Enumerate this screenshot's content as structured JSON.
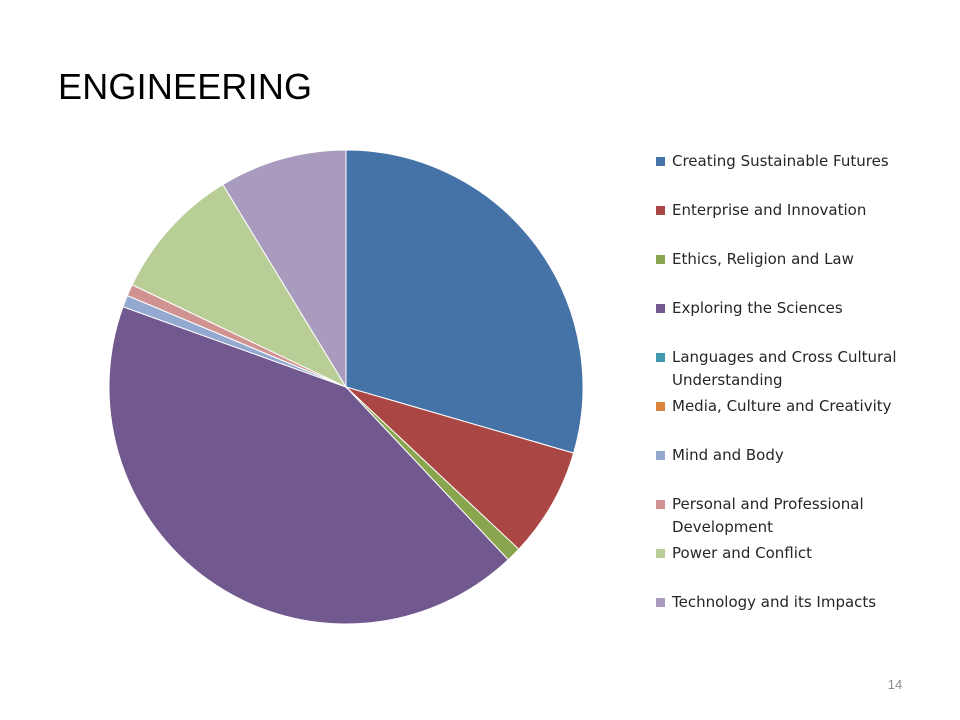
{
  "slide": {
    "title": "ENGINEERING",
    "page_number": "14"
  },
  "chart_data": {
    "type": "pie",
    "title": "",
    "start_angle_deg": 0,
    "direction": "clockwise",
    "slices": [
      {
        "label": "Creating Sustainable Futures",
        "value": 29.5,
        "color": "#4572A7"
      },
      {
        "label": "Enterprise and Innovation",
        "value": 7.5,
        "color": "#AA4643"
      },
      {
        "label": "Ethics, Religion and Law",
        "value": 1.0,
        "color": "#89A54E"
      },
      {
        "label": "Exploring the Sciences",
        "value": 42.5,
        "color": "#71588F"
      },
      {
        "label": "Languages and Cross Cultural Understanding",
        "value": 0.0,
        "color": "#4198AF"
      },
      {
        "label": "Media, Culture and Creativity",
        "value": 0.0,
        "color": "#DB843D"
      },
      {
        "label": "Mind and Body",
        "value": 0.8,
        "color": "#93A9CF"
      },
      {
        "label": "Personal and Professional Development",
        "value": 0.8,
        "color": "#D19392"
      },
      {
        "label": "Power and Conflict",
        "value": 9.2,
        "color": "#B9CD96"
      },
      {
        "label": "Technology and its Impacts",
        "value": 8.7,
        "color": "#A99BBD"
      }
    ],
    "legend_position": "right"
  }
}
